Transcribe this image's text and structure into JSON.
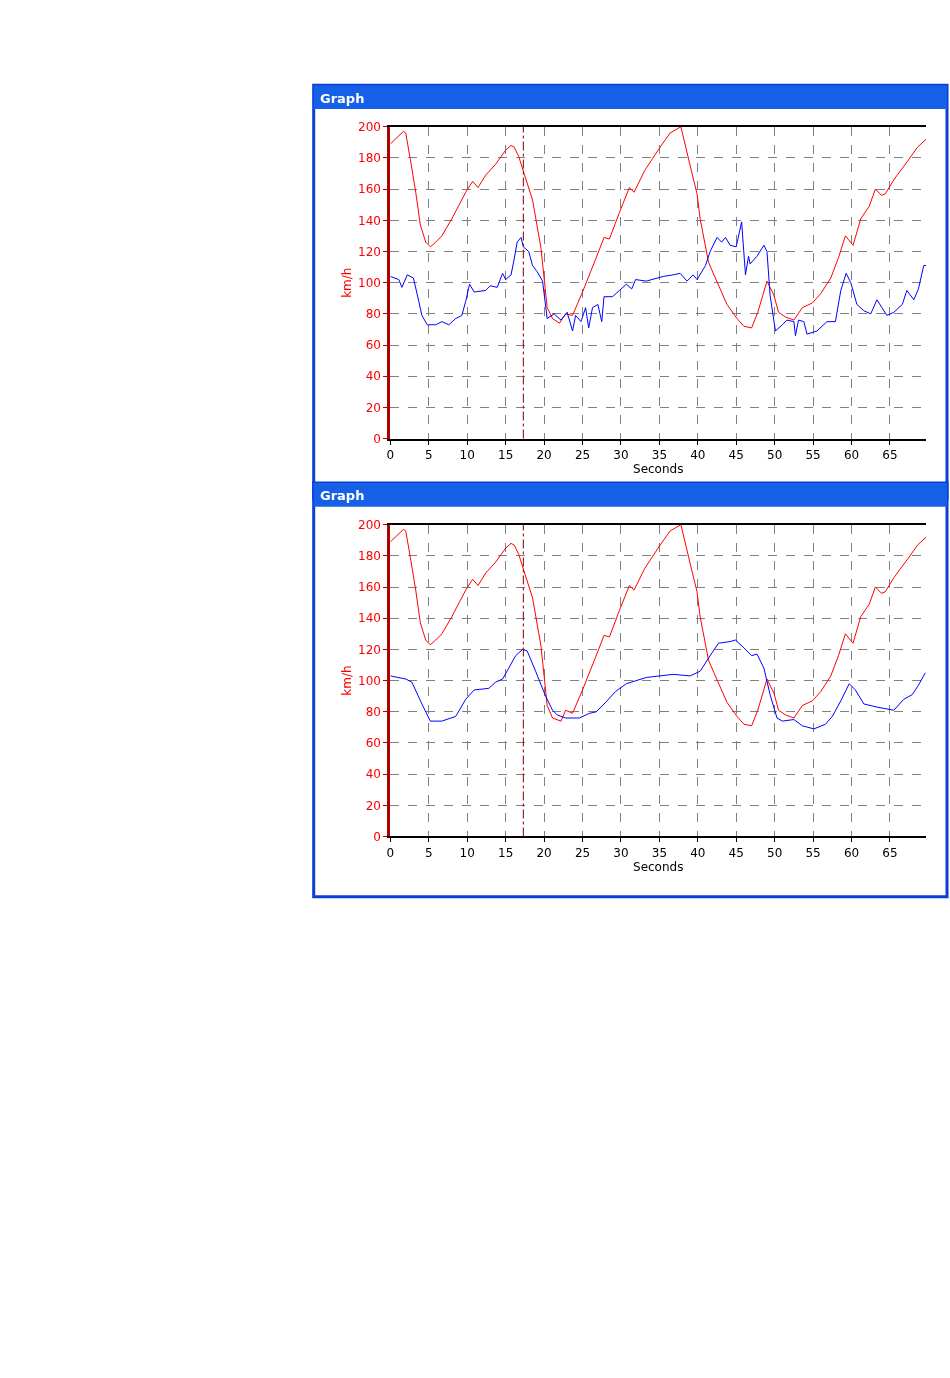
{
  "chart_data": [
    {
      "type": "line",
      "title": "Graph",
      "xlabel": "Seconds",
      "ylabel": "km/h",
      "xlim": [
        0,
        69.7
      ],
      "xticks": [
        0,
        5,
        10,
        15,
        20,
        25,
        30,
        35,
        40,
        45,
        50,
        55,
        60,
        65
      ],
      "ylim": [
        0,
        200
      ],
      "yticks": [
        0,
        20,
        40,
        60,
        80,
        100,
        120,
        140,
        160,
        180,
        200
      ],
      "grid": true,
      "line_style": "solid",
      "marker": "none",
      "ref_lines": [
        {
          "axis": "x",
          "value": 17.3,
          "color": "#800000",
          "line_style": "dashed"
        }
      ],
      "series": [
        {
          "color": "#ff0000",
          "x": [
            0,
            1.7,
            2.0,
            2.6,
            3.3,
            3.9,
            4.6,
            5.2,
            5.9,
            6.7,
            8.0,
            9.8,
            10.7,
            11.4,
            12.4,
            13.7,
            15.0,
            15.7,
            16.1,
            16.7,
            17.4,
            18.5,
            19.6,
            20.4,
            21.1,
            22.0,
            22.8,
            23.7,
            25.0,
            26.7,
            27.8,
            28.5,
            29.8,
            31.1,
            31.7,
            33.1,
            35.1,
            36.4,
            37.8,
            39.2,
            39.9,
            40.3,
            41.4,
            42.1,
            43.8,
            45.1,
            46.0,
            47.0,
            47.8,
            49.0,
            49.9,
            50.5,
            51.4,
            52.5,
            53.6,
            54.9,
            56.0,
            57.3,
            58.3,
            59.2,
            60.2,
            61.2,
            62.3,
            63.1,
            63.9,
            64.4,
            65.5,
            67.3,
            68.6,
            69.7
          ],
          "values": [
            189,
            197,
            196,
            179,
            158,
            137,
            126,
            123,
            126,
            130,
            141,
            158,
            165,
            161,
            169,
            176,
            185,
            188,
            187,
            181,
            170,
            153,
            122,
            84,
            77,
            74,
            80,
            79,
            94,
            115,
            129,
            128,
            145,
            161,
            158,
            172,
            187,
            196,
            200,
            171,
            157,
            141,
            113,
            105,
            86,
            77,
            72,
            71,
            81,
            101,
            92,
            81,
            78,
            76,
            84,
            87,
            93,
            103,
            116,
            130,
            124,
            141,
            149,
            160,
            156,
            157,
            166,
            178,
            187,
            192
          ]
        },
        {
          "color": "#0000ff",
          "x": [
            0,
            1.1,
            1.5,
            2.2,
            3.0,
            3.7,
            4.1,
            4.8,
            5.9,
            6.7,
            7.6,
            8.5,
            9.3,
            9.8,
            10.3,
            10.9,
            12.4,
            13.0,
            13.9,
            14.6,
            15.0,
            15.7,
            16.1,
            16.5,
            17.0,
            17.3,
            18.0,
            18.5,
            19.1,
            19.8,
            20.4,
            21.3,
            22.2,
            23.0,
            23.7,
            24.1,
            24.8,
            25.4,
            25.8,
            26.3,
            27.0,
            27.5,
            27.8,
            28.9,
            29.8,
            30.7,
            31.4,
            31.9,
            33.3,
            35.5,
            36.8,
            37.7,
            38.6,
            39.4,
            39.9,
            41.0,
            41.6,
            42.5,
            43.1,
            43.6,
            44.2,
            45.0,
            45.7,
            46.2,
            46.6,
            46.8,
            47.7,
            48.6,
            49.0,
            49.4,
            50.1,
            51.0,
            51.6,
            52.5,
            52.7,
            53.1,
            53.8,
            54.2,
            55.5,
            56.8,
            57.9,
            58.6,
            59.3,
            59.9,
            60.7,
            61.6,
            62.5,
            63.3,
            64.6,
            65.5,
            66.6,
            67.2,
            68.1,
            68.7,
            69.4,
            69.7
          ],
          "values": [
            104,
            102,
            97,
            105,
            103,
            88,
            79,
            73,
            73,
            75,
            73,
            77,
            79,
            88,
            99,
            94,
            95,
            98,
            97,
            106,
            102,
            105,
            115,
            126,
            129,
            123,
            120,
            111,
            107,
            101,
            77,
            80,
            76,
            81,
            69,
            79,
            75,
            84,
            71,
            84,
            86,
            75,
            91,
            91,
            95,
            99,
            96,
            102,
            101,
            104,
            105,
            106,
            101,
            105,
            102,
            111,
            120,
            129,
            126,
            129,
            124,
            123,
            139,
            105,
            117,
            112,
            117,
            124,
            120,
            92,
            69,
            73,
            76,
            75,
            66,
            76,
            75,
            67,
            69,
            75,
            75,
            95,
            106,
            100,
            86,
            82,
            80,
            89,
            79,
            81,
            86,
            95,
            89,
            96,
            111,
            111
          ]
        }
      ]
    },
    {
      "type": "line",
      "title": "Graph",
      "xlabel": "Seconds",
      "ylabel": "km/h",
      "xlim": [
        0,
        69.7
      ],
      "xticks": [
        0,
        5,
        10,
        15,
        20,
        25,
        30,
        35,
        40,
        45,
        50,
        55,
        60,
        65
      ],
      "ylim": [
        0,
        200
      ],
      "yticks": [
        0,
        20,
        40,
        60,
        80,
        100,
        120,
        140,
        160,
        180,
        200
      ],
      "grid": true,
      "line_style": "solid",
      "marker": "none",
      "ref_lines": [
        {
          "axis": "x",
          "value": 17.3,
          "color": "#800000",
          "line_style": "dashed"
        }
      ],
      "series": [
        {
          "color": "#ff0000",
          "x": [
            0,
            1.7,
            2.0,
            2.6,
            3.3,
            3.9,
            4.6,
            5.2,
            5.9,
            6.7,
            8.0,
            9.8,
            10.7,
            11.4,
            12.4,
            13.7,
            15.0,
            15.7,
            16.1,
            16.7,
            17.4,
            18.5,
            19.6,
            20.4,
            21.1,
            22.2,
            22.8,
            23.7,
            25.0,
            26.7,
            27.8,
            28.5,
            29.8,
            31.1,
            31.7,
            33.1,
            35.1,
            36.4,
            37.8,
            39.2,
            39.9,
            40.3,
            41.4,
            42.1,
            43.8,
            45.1,
            46.0,
            47.0,
            47.8,
            49.0,
            49.9,
            50.5,
            51.4,
            52.5,
            53.6,
            54.9,
            56.0,
            57.3,
            58.3,
            59.2,
            60.2,
            61.2,
            62.3,
            63.1,
            63.9,
            64.4,
            65.5,
            67.3,
            68.6,
            69.7
          ],
          "values": [
            189,
            197,
            196,
            179,
            158,
            137,
            126,
            123,
            126,
            130,
            141,
            158,
            165,
            161,
            169,
            176,
            185,
            188,
            187,
            181,
            170,
            153,
            122,
            84,
            76,
            74,
            81,
            79,
            94,
            115,
            129,
            128,
            145,
            161,
            158,
            172,
            187,
            196,
            200,
            171,
            157,
            141,
            113,
            105,
            86,
            77,
            72,
            71,
            81,
            101,
            92,
            81,
            78,
            76,
            84,
            87,
            93,
            103,
            116,
            130,
            124,
            141,
            149,
            160,
            156,
            157,
            166,
            178,
            187,
            192
          ]
        },
        {
          "color": "#0000ff",
          "x": [
            0,
            2.0,
            2.8,
            4.1,
            5.2,
            6.7,
            8.5,
            9.8,
            10.9,
            12.8,
            13.7,
            14.6,
            15.4,
            16.3,
            17.2,
            17.8,
            18.9,
            20.2,
            21.1,
            21.7,
            22.8,
            24.6,
            25.9,
            26.8,
            28.0,
            29.3,
            30.7,
            33.3,
            36.8,
            39.0,
            40.3,
            41.6,
            42.7,
            44.2,
            44.9,
            46.0,
            47.0,
            47.7,
            48.6,
            49.4,
            50.3,
            51.0,
            52.5,
            53.6,
            55.1,
            56.6,
            57.5,
            58.6,
            59.7,
            60.5,
            61.6,
            63.3,
            65.5,
            66.8,
            67.9,
            68.7,
            69.6
          ],
          "values": [
            103,
            101,
            99,
            85,
            74,
            74,
            77,
            88,
            94,
            95,
            99,
            101,
            108,
            116,
            120,
            119,
            106,
            90,
            81,
            78,
            76,
            76,
            79,
            80,
            86,
            93,
            98,
            102,
            104,
            103,
            106,
            116,
            124,
            125,
            126,
            121,
            116,
            117,
            108,
            91,
            76,
            74,
            75,
            71,
            69,
            72,
            77,
            87,
            98,
            94,
            85,
            83,
            81,
            88,
            91,
            97,
            105
          ]
        }
      ]
    }
  ]
}
